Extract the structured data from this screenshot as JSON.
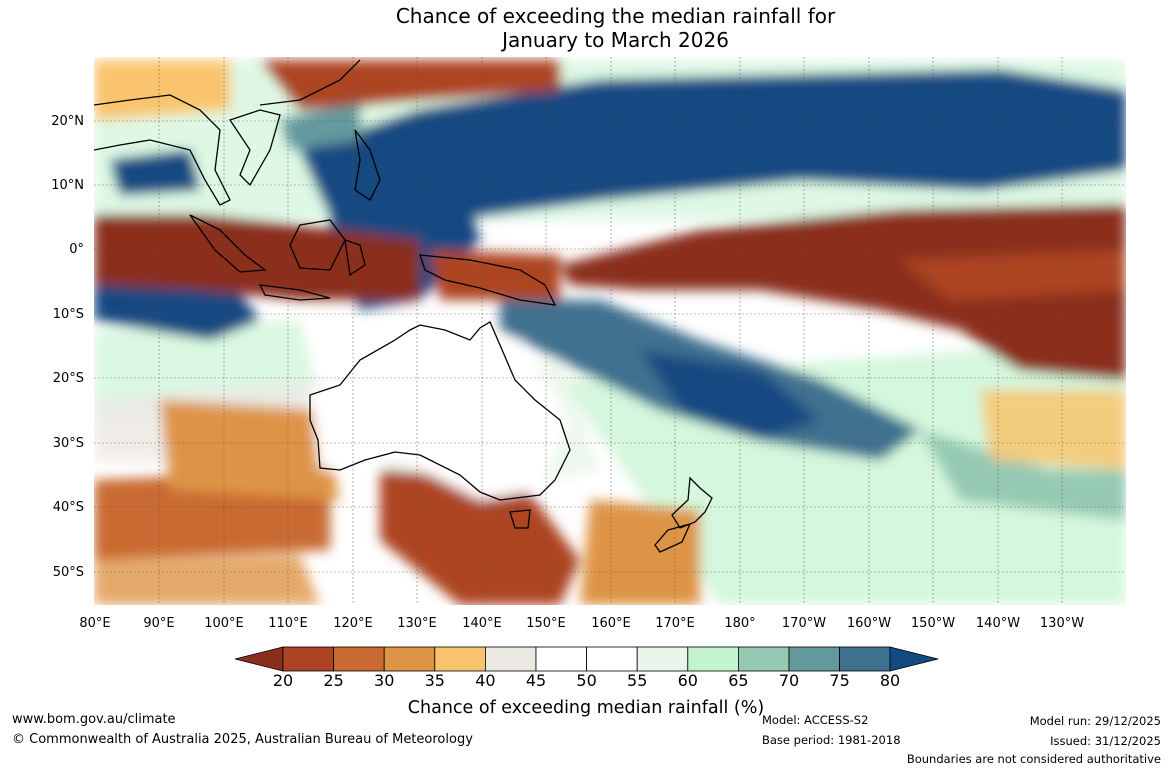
{
  "title_line1": "Chance of exceeding the median rainfall for",
  "title_line2": "January to March 2026",
  "map": {
    "lon_labels": [
      "80°E",
      "90°E",
      "100°E",
      "110°E",
      "120°E",
      "130°E",
      "140°E",
      "150°E",
      "160°E",
      "170°E",
      "180°",
      "170°W",
      "160°W",
      "150°W",
      "140°W",
      "130°W"
    ],
    "lat_labels": [
      "20°N",
      "10°N",
      "0°",
      "10°S",
      "20°S",
      "30°S",
      "40°S",
      "50°S"
    ],
    "lon_range": [
      80,
      240
    ],
    "lat_range": [
      -55,
      30
    ]
  },
  "colorbar": {
    "label": "Chance of exceeding median rainfall (%)",
    "ticks": [
      "20",
      "25",
      "30",
      "35",
      "40",
      "45",
      "50",
      "55",
      "60",
      "65",
      "70",
      "75",
      "80"
    ],
    "colors": [
      "#8b2f1d",
      "#ad4424",
      "#c96a33",
      "#de9447",
      "#f9c46d",
      "#ece9e3",
      "#ffffff",
      "#ffffff",
      "#e8f6ea",
      "#c3f3cf",
      "#96c9b3",
      "#639a9e",
      "#3f718f",
      "#124a82"
    ]
  },
  "footer": {
    "url": "www.bom.gov.au/climate",
    "copyright": "© Commonwealth of Australia 2025, Australian Bureau of Meteorology",
    "model": "Model: ACCESS-S2",
    "base_period": "Base period: 1981-2018",
    "model_run": "Model run: 29/12/2025",
    "issued": "Issued: 31/12/2025",
    "disclaimer": "Boundaries are not considered authoritative"
  }
}
